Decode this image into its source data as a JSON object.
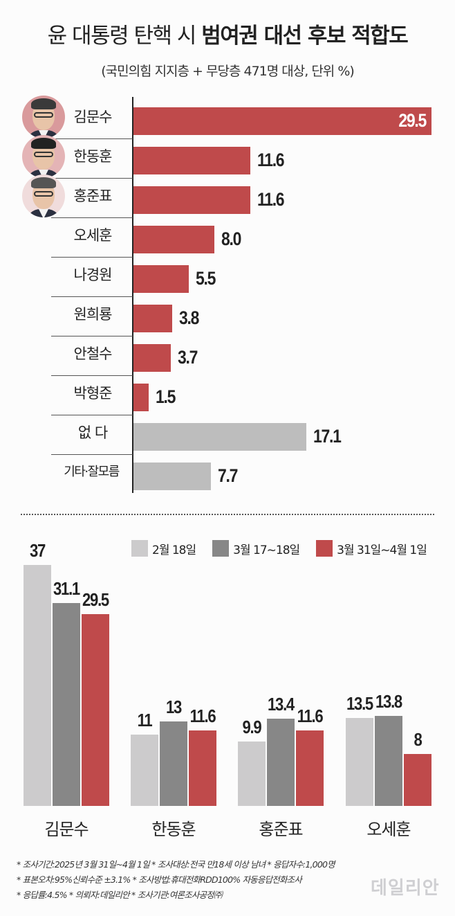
{
  "header": {
    "title_prefix": "윤 대통령 탄핵 시 ",
    "title_bold": "범여권 대선 후보 적합도",
    "subtitle": "(국민의힘 지지층 + 무당층 471명 대상, 단위 %)"
  },
  "colors": {
    "red": "#bf4a4b",
    "gray_bar": "#bdbdbd",
    "light_gray": "#cccbcc",
    "dark_gray": "#878787",
    "text": "#222222",
    "logo": "#cfcfd2"
  },
  "chart_data": [
    {
      "type": "bar",
      "orientation": "horizontal",
      "title": "윤 대통령 탄핵 시 범여권 대선 후보 적합도",
      "subtitle": "(국민의힘 지지층 + 무당층 471명 대상, 단위 %)",
      "categories": [
        "김문수",
        "한동훈",
        "홍준표",
        "오세훈",
        "나경원",
        "원희룡",
        "안철수",
        "박형준",
        "없 다",
        "기타·잘모름"
      ],
      "values": [
        29.5,
        11.6,
        11.6,
        8.0,
        5.5,
        3.8,
        3.7,
        1.5,
        17.1,
        7.7
      ],
      "value_labels": [
        "29.5",
        "11.6",
        "11.6",
        "8.0",
        "5.5",
        "3.8",
        "3.7",
        "1.5",
        "17.1",
        "7.7"
      ],
      "bar_colors": [
        "red",
        "red",
        "red",
        "red",
        "red",
        "red",
        "red",
        "red",
        "gray",
        "gray"
      ],
      "unit": "%",
      "xlabel": "",
      "ylabel": "",
      "grid": false
    },
    {
      "type": "bar",
      "orientation": "vertical",
      "title": "",
      "categories": [
        "김문수",
        "한동훈",
        "홍준표",
        "오세훈"
      ],
      "series": [
        {
          "name": "2월 18일",
          "color": "#cccbcc",
          "values": [
            37,
            11,
            9.9,
            13.5
          ],
          "labels": [
            "37",
            "11",
            "9.9",
            "13.5"
          ]
        },
        {
          "name": "3월 17~18일",
          "color": "#878787",
          "values": [
            31.1,
            13,
            13.4,
            13.8
          ],
          "labels": [
            "31.1",
            "13",
            "13.4",
            "13.8"
          ]
        },
        {
          "name": "3월 31일~4월 1일",
          "color": "#bf4a4b",
          "values": [
            29.5,
            11.6,
            11.6,
            8
          ],
          "labels": [
            "29.5",
            "11.6",
            "11.6",
            "8"
          ]
        }
      ],
      "legend_position": "top-right",
      "grid": false
    }
  ],
  "hbar": {
    "rows": [
      {
        "label": "김문수",
        "value": 29.5,
        "text": "29.5",
        "color": "#bf4a4b",
        "photo": true
      },
      {
        "label": "한동훈",
        "value": 11.6,
        "text": "11.6",
        "color": "#bf4a4b",
        "photo": true
      },
      {
        "label": "홍준표",
        "value": 11.6,
        "text": "11.6",
        "color": "#bf4a4b",
        "photo": true
      },
      {
        "label": "오세훈",
        "value": 8.0,
        "text": "8.0",
        "color": "#bf4a4b"
      },
      {
        "label": "나경원",
        "value": 5.5,
        "text": "5.5",
        "color": "#bf4a4b"
      },
      {
        "label": "원희룡",
        "value": 3.8,
        "text": "3.8",
        "color": "#bf4a4b"
      },
      {
        "label": "안철수",
        "value": 3.7,
        "text": "3.7",
        "color": "#bf4a4b"
      },
      {
        "label": "박형준",
        "value": 1.5,
        "text": "1.5",
        "color": "#bf4a4b"
      },
      {
        "label": "없  다",
        "value": 17.1,
        "text": "17.1",
        "color": "#bdbdbd"
      },
      {
        "label": "기타·잘모름",
        "value": 7.7,
        "text": "7.7",
        "color": "#bdbdbd"
      }
    ]
  },
  "legend": {
    "items": [
      {
        "label": "2월 18일",
        "color": "#cccbcc"
      },
      {
        "label": "3월 17~18일",
        "color": "#878787"
      },
      {
        "label": "3월 31일~4월 1일",
        "color": "#bf4a4b"
      }
    ]
  },
  "gbar": {
    "groups": [
      {
        "label": "김문수",
        "values": [
          37,
          31.1,
          29.5
        ],
        "texts": [
          "37",
          "31.1",
          "29.5"
        ]
      },
      {
        "label": "한동훈",
        "values": [
          11,
          13,
          11.6
        ],
        "texts": [
          "11",
          "13",
          "11.6"
        ]
      },
      {
        "label": "홍준표",
        "values": [
          9.9,
          13.4,
          11.6
        ],
        "texts": [
          "9.9",
          "13.4",
          "11.6"
        ]
      },
      {
        "label": "오세훈",
        "values": [
          13.5,
          13.8,
          8
        ],
        "texts": [
          "13.5",
          "13.8",
          "8"
        ]
      }
    ]
  },
  "footer": {
    "notes": [
      "* 조사기간:2025년 3월 31일~4월 1일  * 조사대상:전국 만18세 이상 남녀  * 응답자수:1,000명",
      "* 표본오차:95%신뢰수준 ±3.1%  * 조사방법:휴대전화RDD100% 자동응답전화조사",
      "* 응답률:4.5%  * 의뢰자:데일리안  * 조사기관:여론조사공정㈜"
    ],
    "logo": "데일리안"
  }
}
